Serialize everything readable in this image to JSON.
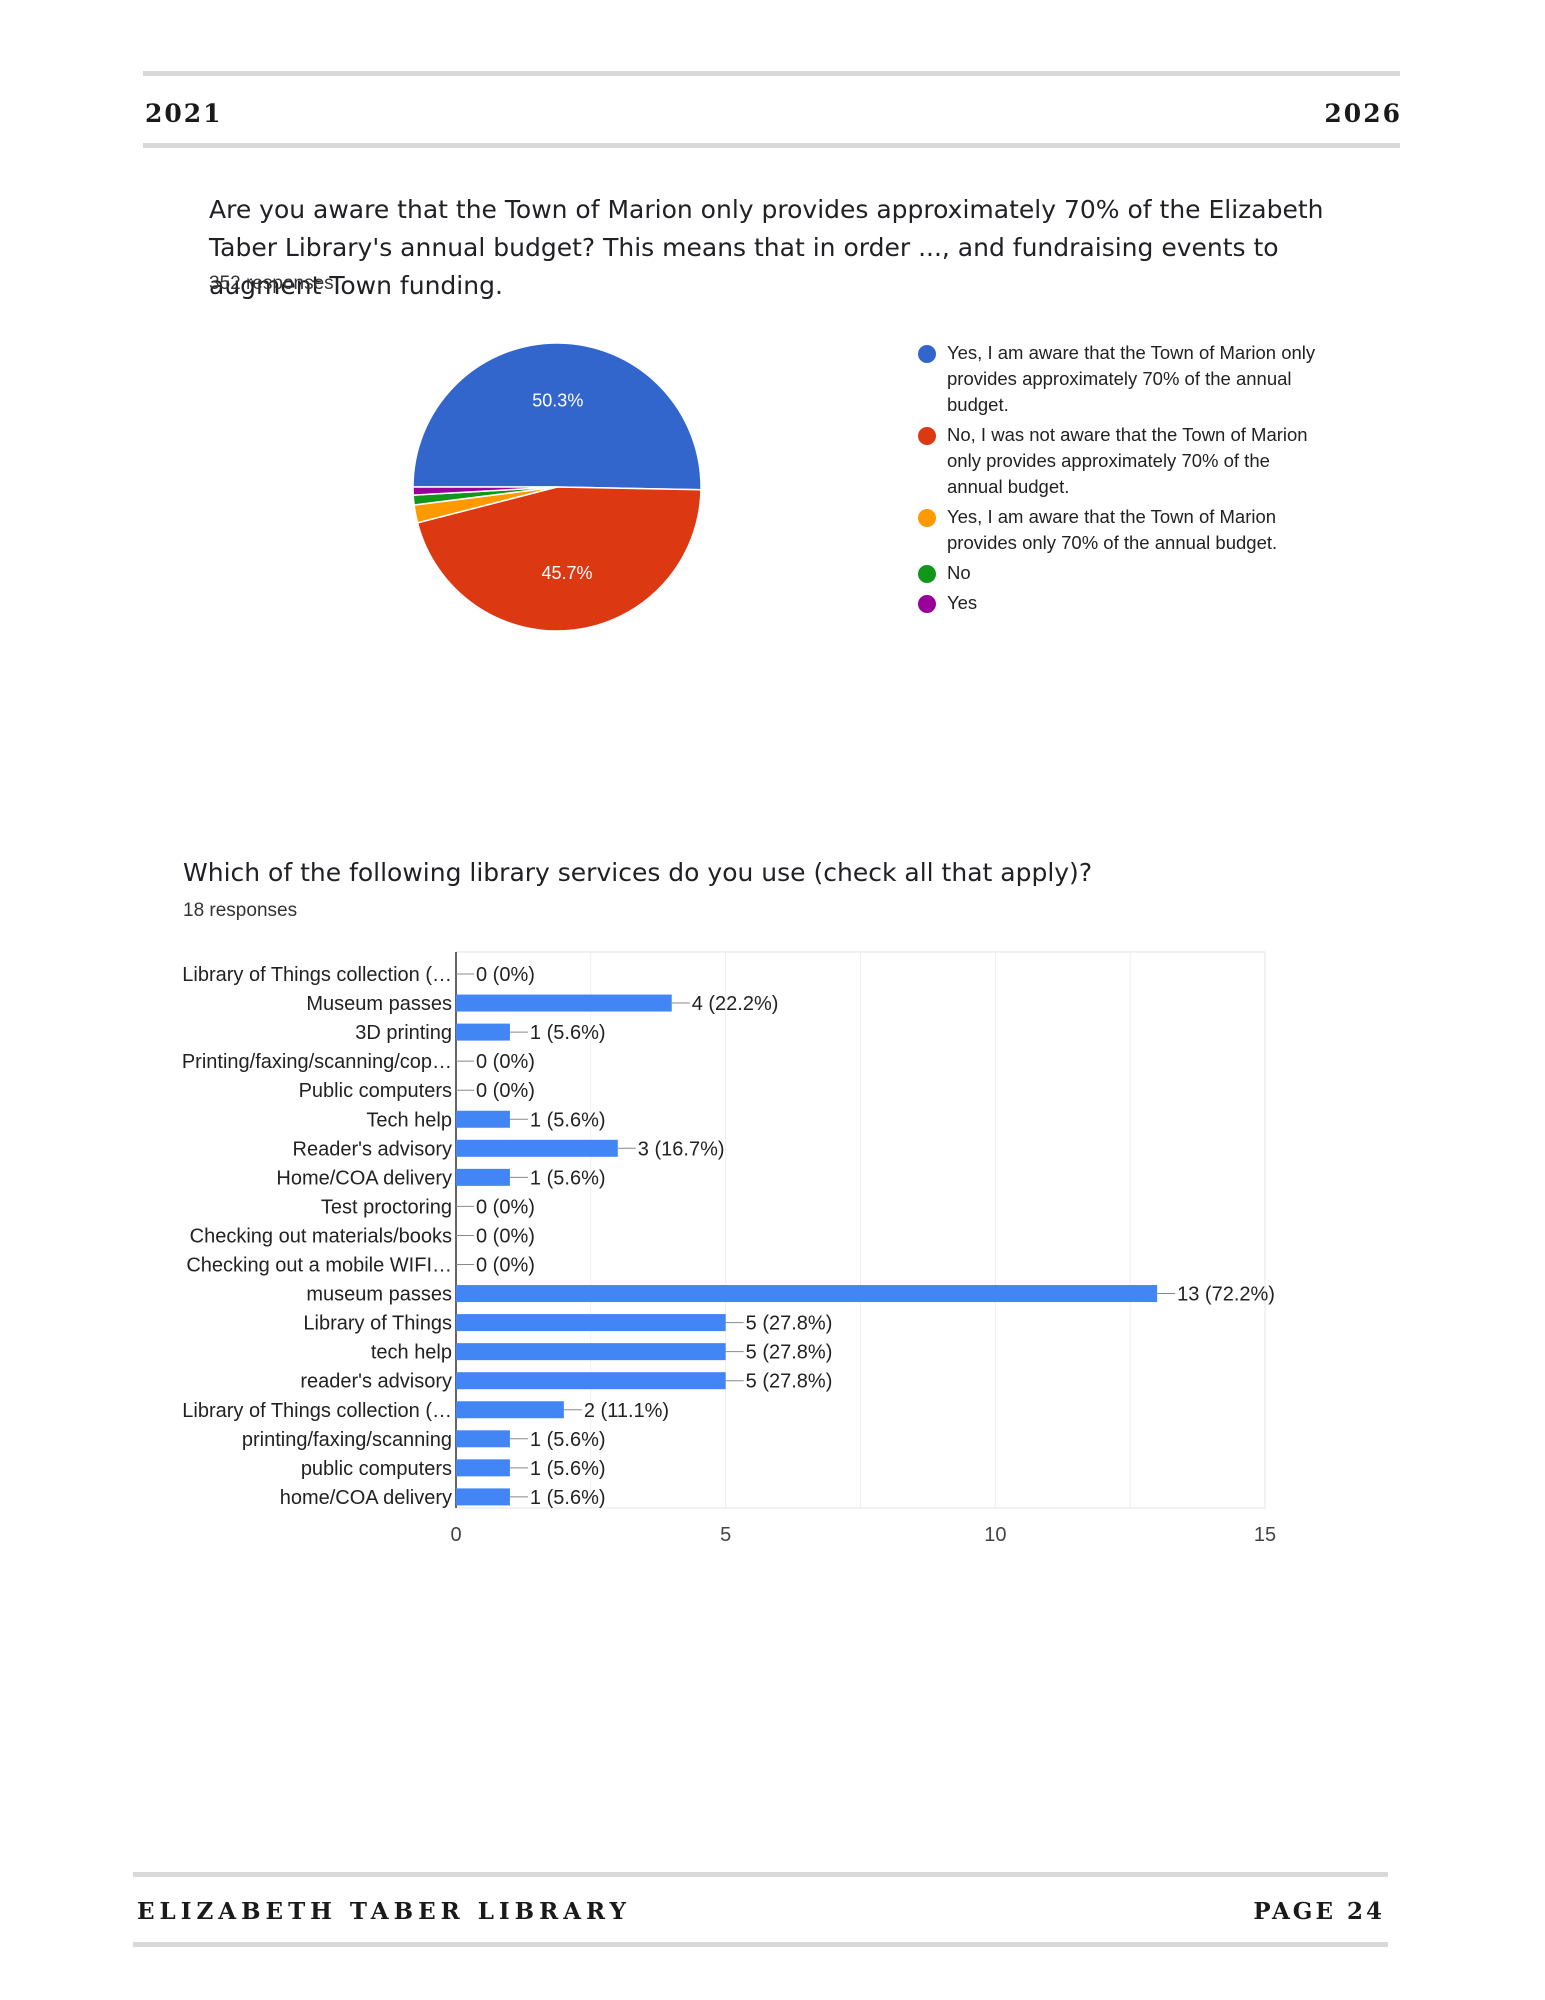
{
  "header": {
    "left": "2021",
    "right": "2026"
  },
  "footer": {
    "left": "ELIZABETH TABER LIBRARY",
    "right": "PAGE 24"
  },
  "colors": {
    "blue": "#3366cc",
    "red": "#dc3912",
    "orange": "#ff9900",
    "green": "#109618",
    "purple": "#990099",
    "bar": "#4285f4"
  },
  "question1": {
    "title": "Are you aware that the Town of Marion only provides approximately 70% of the Elizabeth Taber Library's annual budget? This means that in order ..., and fundraising events to augment Town funding.",
    "responses": "352 responses"
  },
  "question2": {
    "title": "Which of the following library services do you use (check all that apply)?",
    "responses": "18 responses"
  },
  "chart_data": [
    {
      "type": "pie",
      "slices": [
        {
          "label": "Yes, I am aware that the Town of Marion only provides approximately 70% of the annual budget.",
          "percent": 50.3,
          "display": "50.3%",
          "color": "#3366cc"
        },
        {
          "label": "No, I was not aware that the Town of Marion only provides approximately 70% of the annual budget.",
          "percent": 45.7,
          "display": "45.7%",
          "color": "#dc3912"
        },
        {
          "label": "Yes, I am aware that the Town of Marion provides only 70% of the annual budget.",
          "percent": 2.0,
          "display": "",
          "color": "#ff9900"
        },
        {
          "label": "No",
          "percent": 1.1,
          "display": "",
          "color": "#109618"
        },
        {
          "label": "Yes",
          "percent": 0.9,
          "display": "",
          "color": "#990099"
        }
      ],
      "legend": "right"
    },
    {
      "type": "bar",
      "orientation": "horizontal",
      "categories": [
        "Library of Things collection (…",
        "Museum passes",
        "3D printing",
        "Printing/faxing/scanning/cop…",
        "Public computers",
        "Tech help",
        "Reader's advisory",
        "Home/COA delivery",
        "Test proctoring",
        "Checking out materials/books",
        "Checking out a mobile WIFI…",
        "museum passes",
        "Library of Things",
        "tech help",
        "reader's advisory",
        "Library of Things collection (…",
        "printing/faxing/scanning",
        "public computers",
        "home/COA delivery"
      ],
      "values": [
        0,
        4,
        1,
        0,
        0,
        1,
        3,
        1,
        0,
        0,
        0,
        13,
        5,
        5,
        5,
        2,
        1,
        1,
        1
      ],
      "labels": [
        "0 (0%)",
        "4 (22.2%)",
        "1 (5.6%)",
        "0 (0%)",
        "0 (0%)",
        "1 (5.6%)",
        "3 (16.7%)",
        "1 (5.6%)",
        "0 (0%)",
        "0 (0%)",
        "0 (0%)",
        "13 (72.2%)",
        "5 (27.8%)",
        "5 (27.8%)",
        "5 (27.8%)",
        "2 (11.1%)",
        "1 (5.6%)",
        "1 (5.6%)",
        "1 (5.6%)"
      ],
      "xlim": [
        0,
        15
      ],
      "xticks": [
        "0",
        "5",
        "10",
        "15"
      ],
      "grid": true
    }
  ]
}
